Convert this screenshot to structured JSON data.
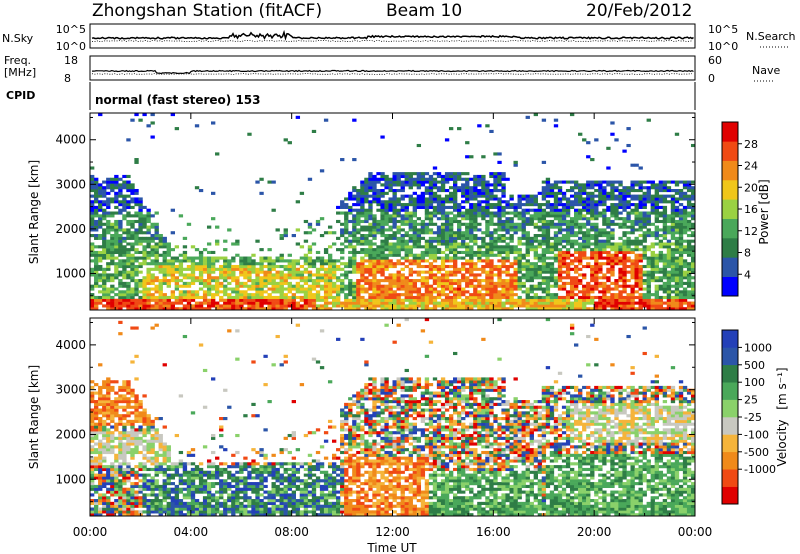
{
  "header": {
    "station": "Zhongshan Station (fitACF)",
    "beam": "Beam 10",
    "date": "20/Feb/2012"
  },
  "strips": {
    "nsky_label": "N.Sky",
    "nsky_top": "10^5",
    "nsky_bottom": "10^0",
    "nsearch_label": "N.Search",
    "nsearch_top": "10^5",
    "nsearch_bottom": "10^0",
    "freq_label": "Freq.",
    "freq_unit": "[MHz]",
    "freq_top": "18",
    "freq_bottom": "8",
    "nave_label": "Nave",
    "nave_top": "60",
    "nave_bottom": "0",
    "cpid_label": "CPID",
    "cpid_text": "normal (fast stereo) 153"
  },
  "colors": {
    "power_scale": [
      "#0000ff",
      "#2b55a8",
      "#2e7d46",
      "#4aa85a",
      "#9ad142",
      "#f0c61a",
      "#f08a1a",
      "#f04a14",
      "#e00000"
    ],
    "velocity_scale": [
      "#e00000",
      "#f04a14",
      "#f08a1a",
      "#f5b43a",
      "#c8c8c0",
      "#8ad16a",
      "#4aa85a",
      "#2e7d46",
      "#2b55a8",
      "#2340b8"
    ]
  },
  "chart_data": [
    {
      "type": "heatmap",
      "name": "power",
      "xlabel": "",
      "ylabel": "Slant Range [km]",
      "x_ticks": [
        "00:00",
        "04:00",
        "08:00",
        "12:00",
        "16:00",
        "20:00",
        "00:00"
      ],
      "y_ticks": [
        1000,
        2000,
        3000,
        4000
      ],
      "ylim": [
        180,
        4600
      ],
      "xlim_hours": [
        0,
        24
      ],
      "colorbar_label": "Power [dB]",
      "colorbar_ticks": [
        4,
        8,
        12,
        16,
        20,
        24,
        28
      ],
      "colorbar_range": [
        0,
        32
      ]
    },
    {
      "type": "heatmap",
      "name": "velocity",
      "xlabel": "Time UT",
      "ylabel": "Slant Range [km]",
      "x_ticks": [
        "00:00",
        "04:00",
        "08:00",
        "12:00",
        "16:00",
        "20:00",
        "00:00"
      ],
      "y_ticks": [
        1000,
        2000,
        3000,
        4000
      ],
      "ylim": [
        180,
        4600
      ],
      "xlim_hours": [
        0,
        24
      ],
      "colorbar_label": "Velocity",
      "colorbar_unit": "[m s⁻¹]",
      "colorbar_ticks": [
        "1000",
        "500",
        "100",
        "25",
        "-25",
        "-100",
        "-500",
        "-1000"
      ]
    }
  ]
}
